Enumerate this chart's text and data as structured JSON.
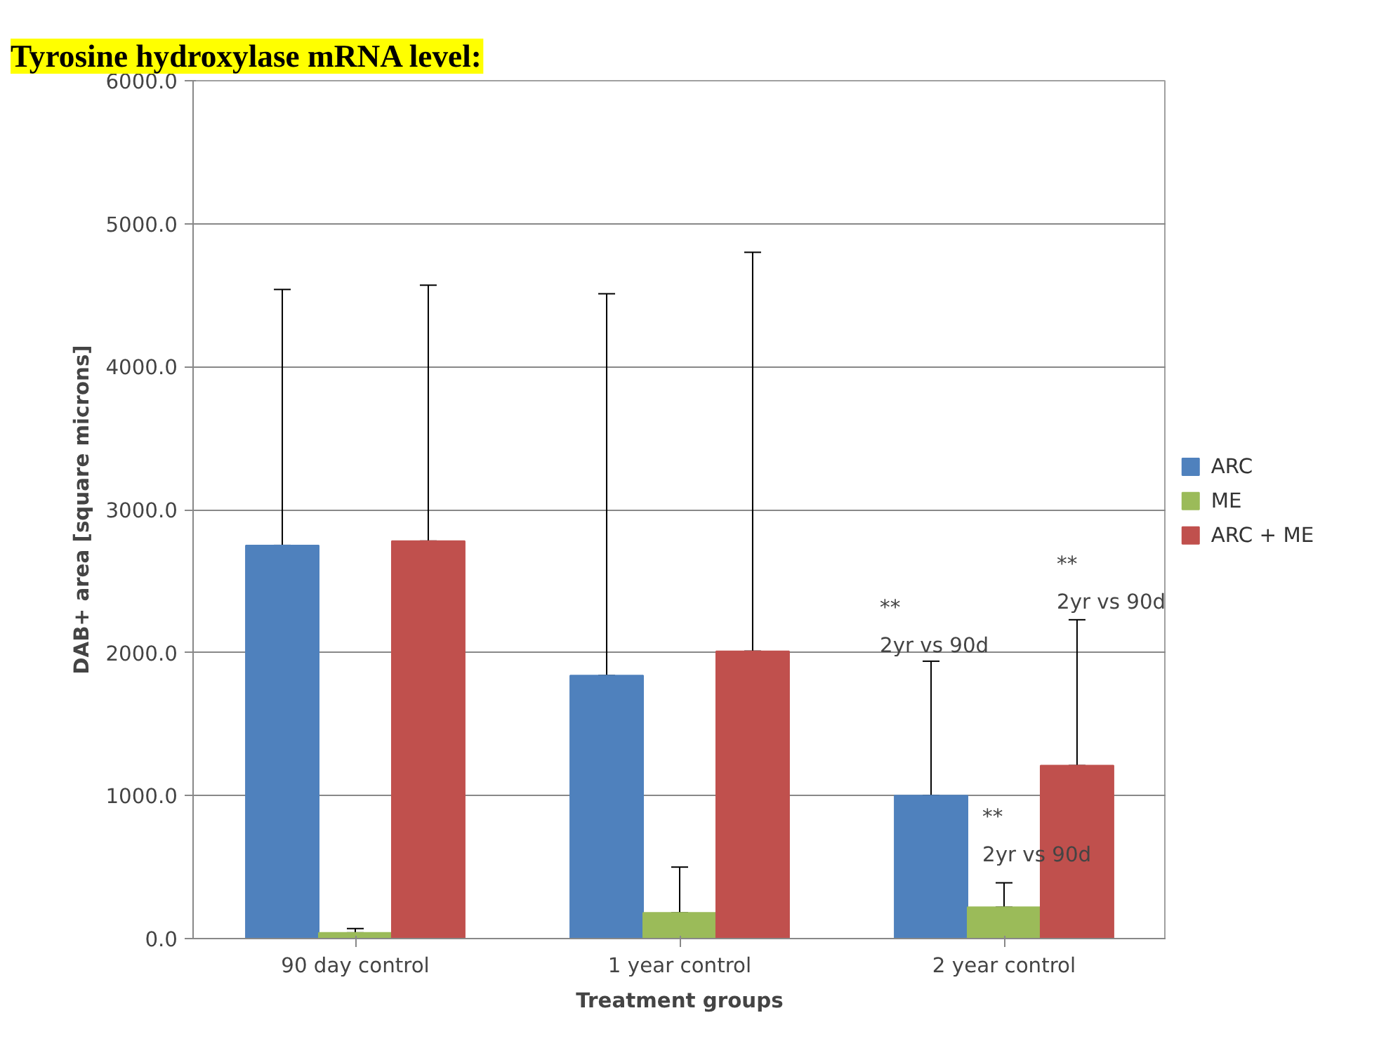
{
  "chart_data": {
    "type": "bar",
    "title": "Tyrosine hydroxylase mRNA level:",
    "xlabel": "Treatment groups",
    "ylabel": "DAB+ area [square microns]",
    "categories": [
      "90 day control",
      "1 year control",
      "2 year control"
    ],
    "series": [
      {
        "name": "ARC",
        "color": "#4f81bd",
        "values": [
          2750,
          1840,
          1000
        ],
        "errors": [
          [
            2750,
            4540
          ],
          [
            1840,
            4510
          ],
          [
            1000,
            1940
          ]
        ]
      },
      {
        "name": "ME",
        "color": "#9bbb59",
        "values": [
          40,
          180,
          220
        ],
        "errors": [
          [
            40,
            70
          ],
          [
            180,
            500
          ],
          [
            220,
            390
          ]
        ]
      },
      {
        "name": "ARC + ME",
        "color": "#c0504d",
        "values": [
          2780,
          2010,
          1210
        ],
        "errors": [
          [
            2780,
            4570
          ],
          [
            2010,
            4800
          ],
          [
            1210,
            2230
          ]
        ]
      }
    ],
    "ylim": [
      0,
      6000
    ],
    "yticks": [
      {
        "value": 0,
        "label": "0.0"
      },
      {
        "value": 1000,
        "label": "1000.0"
      },
      {
        "value": 2000,
        "label": "2000.0"
      },
      {
        "value": 3000,
        "label": "3000.0"
      },
      {
        "value": 4000,
        "label": "4000.0"
      },
      {
        "value": 5000,
        "label": "5000.0"
      },
      {
        "value": 6000,
        "label": "6000.0"
      }
    ],
    "grid": "y",
    "legend": "right",
    "annotations": [
      "**\n2yr vs 90d",
      "**\n2yr vs 90d",
      "**\n2yr vs 90d"
    ]
  }
}
